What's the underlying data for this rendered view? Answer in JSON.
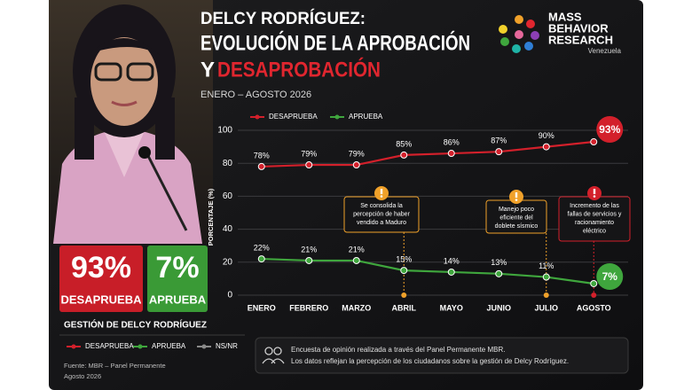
{
  "header": {
    "title_line1": "DELCY RODRÍGUEZ:",
    "title_line2": "EVOLUCIÓN DE LA APROBACIÓN",
    "title_line3_prefix": "Y",
    "title_line3_highlight": "DESAPROBACIÓN",
    "subtitle": "ENERO – AGOSTO 2026"
  },
  "logo": {
    "line1": "MASS",
    "line2": "BEHAVIOR",
    "line3": "RESEARCH",
    "country": "Venezuela"
  },
  "summary": {
    "disapprove_value": "93%",
    "disapprove_label": "DESAPRUEBA",
    "approve_value": "7%",
    "approve_label": "APRUEBA",
    "caption": "GESTIÓN DE DELCY RODRÍGUEZ"
  },
  "chart_data": {
    "type": "line",
    "ylabel": "PORCENTAJE (%)",
    "categories": [
      "ENERO",
      "FEBRERO",
      "MARZO",
      "ABRIL",
      "MAYO",
      "JUNIO",
      "JULIO",
      "AGOSTO"
    ],
    "ylim": [
      0,
      100
    ],
    "yticks": [
      0,
      20,
      40,
      60,
      80,
      100
    ],
    "grid": true,
    "series": [
      {
        "name": "DESAPRUEBA",
        "color": "#d3202b",
        "values": [
          78,
          79,
          79,
          85,
          86,
          87,
          90,
          93
        ],
        "value_labels": [
          "78%",
          "79%",
          "79%",
          "85%",
          "86%",
          "87%",
          "90%",
          "93%"
        ]
      },
      {
        "name": "APRUEBA",
        "color": "#3fa63d",
        "values": [
          22,
          21,
          21,
          15,
          14,
          13,
          11,
          7
        ],
        "value_labels": [
          "22%",
          "21%",
          "21%",
          "15%",
          "14%",
          "13%",
          "11%",
          "7%"
        ]
      }
    ],
    "annotations": [
      {
        "lines": [
          "Se consolida la",
          "percepción de haber",
          "vendido a Maduro"
        ],
        "color": "#f0a12a"
      },
      {
        "lines": [
          "Manejo poco",
          "eficiente del",
          "doblete sísmico"
        ],
        "color": "#f0a12a"
      },
      {
        "lines": [
          "Incremento de las",
          "fallas de servicios y",
          "racionamiento",
          "eléctrico"
        ],
        "color": "#d3202b"
      }
    ]
  },
  "footer": {
    "legend_nsnr": "NS/NR",
    "note_line1": "Encuesta de opinión realizada a través del Panel Permanente MBR.",
    "note_line2": "Los datos reflejan la percepción de los ciudadanos sobre la gestión de Delcy Rodríguez.",
    "source": "Fuente: MBR – Panel Permanente",
    "date": "Agosto 2026"
  }
}
